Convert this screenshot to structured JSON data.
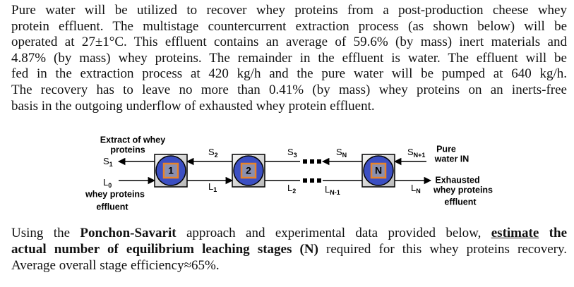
{
  "paragraph1": {
    "lines": [
      "Pure water will be utilized to recover whey proteins from a post-production cheese whey",
      "protein effluent. The multistage countercurrent extraction process (as shown below) will be",
      "operated at 27±1°C. This effluent contains an average of 59.6% (by mass) inert materials and",
      "4.87% (by mass) whey proteins. The remainder in the effluent is water. The effluent will be",
      "fed in the extraction process at 420 kg/h and the pure water will be pumped at 640 kg/h.",
      "The recovery has to leave no more than 0.41% (by mass) whey proteins on an inerts-free",
      "basis in the outgoing underflow of exhausted whey protein effluent."
    ]
  },
  "diagram": {
    "extract_label": [
      "Extract of whey",
      "proteins"
    ],
    "feed_label": [
      "whey proteins",
      "effluent"
    ],
    "solvent_label": [
      "Pure",
      "water IN"
    ],
    "exhausted_label": [
      "Exhausted",
      "whey proteins",
      "effluent"
    ],
    "stages": [
      "1",
      "2",
      "N"
    ],
    "streams": [
      {
        "base": "S",
        "sub": "1"
      },
      {
        "base": "L",
        "sub": "0"
      },
      {
        "base": "S",
        "sub": "2"
      },
      {
        "base": "L",
        "sub": "1"
      },
      {
        "base": "S",
        "sub": "3"
      },
      {
        "base": "L",
        "sub": "2"
      },
      {
        "base": "S",
        "sub": "N"
      },
      {
        "base": "L",
        "sub": "N-1"
      },
      {
        "base": "S",
        "sub": "N+1"
      },
      {
        "base": "L",
        "sub": "N"
      }
    ]
  },
  "paragraph2": {
    "lines": [
      [
        {
          "text": "Using the "
        },
        {
          "text": "Ponchon-Savarit",
          "bold": true
        },
        {
          "text": " approach and experimental data provided below, "
        },
        {
          "text": "estimate",
          "bold": true,
          "underline": true
        },
        {
          "text": " the",
          "bold": true
        }
      ],
      [
        {
          "text": "actual number of equilibrium leaching stages (N)",
          "bold": true
        },
        {
          "text": " required for this whey proteins recovery."
        }
      ],
      [
        {
          "text": "Average overall stage efficiency≈65%."
        }
      ]
    ]
  }
}
